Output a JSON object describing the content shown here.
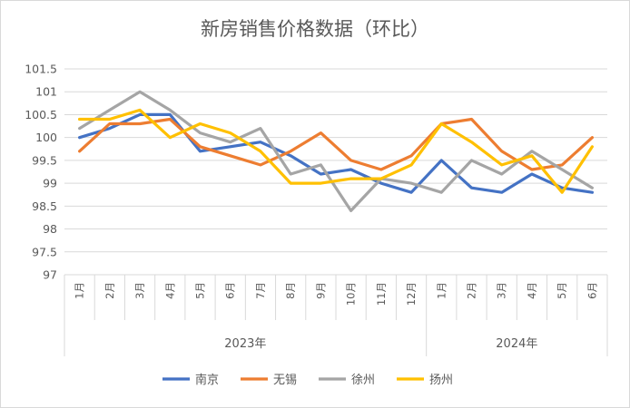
{
  "chart_data": {
    "type": "line",
    "title": "新房销售价格数据（环比）",
    "categories": [
      "1月",
      "2月",
      "3月",
      "4月",
      "5月",
      "6月",
      "7月",
      "8月",
      "9月",
      "10月",
      "11月",
      "12月",
      "1月",
      "2月",
      "3月",
      "4月",
      "5月",
      "6月"
    ],
    "groups": [
      {
        "label": "2023年",
        "count": 12
      },
      {
        "label": "2024年",
        "count": 6
      }
    ],
    "ylim": [
      97,
      101.5
    ],
    "yticks": [
      "97",
      "97.5",
      "98",
      "98.5",
      "99",
      "99.5",
      "100",
      "100.5",
      "101",
      "101.5"
    ],
    "grid": true,
    "legend_position": "bottom",
    "series": [
      {
        "name": "南京",
        "color": "#4472C4",
        "values": [
          100.0,
          100.2,
          100.5,
          100.5,
          99.7,
          99.8,
          99.9,
          99.6,
          99.2,
          99.3,
          99.0,
          98.8,
          99.5,
          98.9,
          98.8,
          99.2,
          98.9,
          98.8
        ]
      },
      {
        "name": "无锡",
        "color": "#ED7D31",
        "values": [
          99.7,
          100.3,
          100.3,
          100.4,
          99.8,
          99.6,
          99.4,
          99.7,
          100.1,
          99.5,
          99.3,
          99.6,
          100.3,
          100.4,
          99.7,
          99.3,
          99.4,
          100.0
        ]
      },
      {
        "name": "徐州",
        "color": "#A5A5A5",
        "values": [
          100.2,
          100.6,
          101.0,
          100.6,
          100.1,
          99.9,
          100.2,
          99.2,
          99.4,
          98.4,
          99.1,
          99.0,
          98.8,
          99.5,
          99.2,
          99.7,
          99.3,
          98.9
        ]
      },
      {
        "name": "扬州",
        "color": "#FFC000",
        "values": [
          100.4,
          100.4,
          100.6,
          100.0,
          100.3,
          100.1,
          99.7,
          99.0,
          99.0,
          99.1,
          99.1,
          99.4,
          100.3,
          99.9,
          99.4,
          99.6,
          98.8,
          99.8
        ]
      }
    ]
  }
}
